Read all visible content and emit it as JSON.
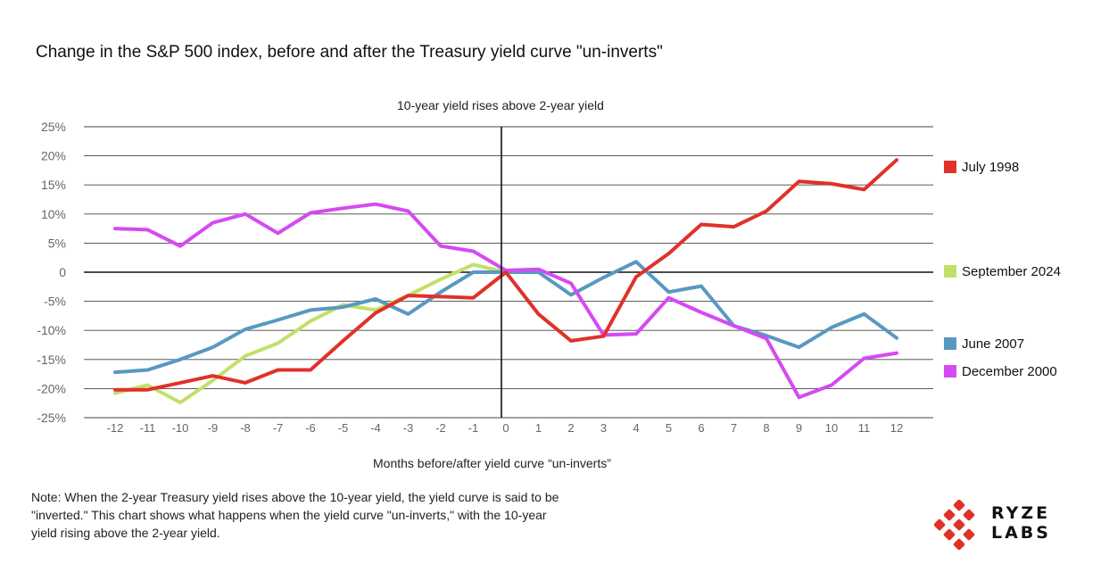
{
  "title": "Change in the S&P 500 index, before and after the Treasury yield curve \"un-inverts\"",
  "note": "Note: When the 2-year Treasury yield rises above the 10-year yield, the yield curve is said to be \"inverted.\" This chart shows what happens when the yield curve \"un-inverts,\" with the 10-year yield rising above the 2-year yield.",
  "logo": {
    "line1": "RYZE",
    "line2": "LABS",
    "color": "#e03127"
  },
  "chart_data": {
    "type": "line",
    "title": "Change in the S&P 500 index, before and after the Treasury yield curve \"un-inverts\"",
    "subtitle": "10-year yield rises above 2-year yield",
    "xlabel": "Months before/after  yield curve “un-inverts”",
    "ylabel": "",
    "x_tick_labels": [
      "-12",
      "-11",
      "-10",
      "-9",
      "-8",
      "-7",
      "-6",
      "-5",
      "-4",
      "-3",
      "-2",
      "-1",
      "0",
      "1",
      "2",
      "3",
      "4",
      "5",
      "6",
      "7",
      "8",
      "9",
      "10",
      "11",
      "12"
    ],
    "y_tick_labels": [
      "25%",
      "20%",
      "15%",
      "10%",
      "5%",
      "0",
      "-5%",
      "-10%",
      "-15%",
      "-20%",
      "-25%"
    ],
    "xlim": [
      -12,
      12
    ],
    "ylim": [
      -25,
      25
    ],
    "grid": true,
    "legend_position": "right",
    "series": [
      {
        "name": "July 1998",
        "color": "#e0312a",
        "points": [
          [
            -12,
            -20.2
          ],
          [
            -11,
            -20.2
          ],
          [
            -10,
            -19
          ],
          [
            -9,
            -17.8
          ],
          [
            -8,
            -19
          ],
          [
            -7,
            -16.8
          ],
          [
            -6,
            -16.8
          ],
          [
            -5,
            -11.8
          ],
          [
            -4,
            -7
          ],
          [
            -3,
            -4
          ],
          [
            -2,
            -4.2
          ],
          [
            -1,
            -4.4
          ],
          [
            0,
            0
          ],
          [
            1,
            -7.2
          ],
          [
            2,
            -11.8
          ],
          [
            3,
            -11
          ],
          [
            4,
            -0.8
          ],
          [
            5,
            3.2
          ],
          [
            6,
            8.2
          ],
          [
            7,
            7.8
          ],
          [
            8,
            10.5
          ],
          [
            9,
            15.6
          ],
          [
            10,
            15.2
          ],
          [
            11,
            14.2
          ],
          [
            12,
            19.3
          ]
        ]
      },
      {
        "name": "September 2024",
        "color": "#c2e069",
        "points": [
          [
            -12,
            -20.8
          ],
          [
            -11,
            -19.4
          ],
          [
            -10,
            -22.4
          ],
          [
            -9,
            -18.6
          ],
          [
            -8,
            -14.4
          ],
          [
            -7,
            -12.2
          ],
          [
            -6,
            -8.4
          ],
          [
            -5,
            -5.6
          ],
          [
            -4,
            -6.5
          ],
          [
            -3,
            -4
          ],
          [
            -2,
            -1.2
          ],
          [
            -1,
            1.3
          ],
          [
            0,
            0
          ]
        ]
      },
      {
        "name": "June 2007",
        "color": "#5799c1",
        "points": [
          [
            -12,
            -17.2
          ],
          [
            -11,
            -16.8
          ],
          [
            -10,
            -15
          ],
          [
            -9,
            -12.9
          ],
          [
            -8,
            -9.8
          ],
          [
            -7,
            -8.2
          ],
          [
            -6,
            -6.5
          ],
          [
            -5,
            -6
          ],
          [
            -4,
            -4.6
          ],
          [
            -3,
            -7.2
          ],
          [
            -2,
            -3.4
          ],
          [
            -1,
            0
          ],
          [
            0,
            0
          ],
          [
            1,
            0
          ],
          [
            2,
            -3.9
          ],
          [
            3,
            -0.9
          ],
          [
            4,
            1.8
          ],
          [
            5,
            -3.4
          ],
          [
            6,
            -2.4
          ],
          [
            7,
            -9.2
          ],
          [
            8,
            -10.9
          ],
          [
            9,
            -12.9
          ],
          [
            10,
            -9.5
          ],
          [
            11,
            -7.2
          ],
          [
            12,
            -11.3
          ]
        ]
      },
      {
        "name": "December 2000",
        "color": "#d54af2",
        "points": [
          [
            -12,
            7.5
          ],
          [
            -11,
            7.3
          ],
          [
            -10,
            4.5
          ],
          [
            -9,
            8.5
          ],
          [
            -8,
            10
          ],
          [
            -7,
            6.7
          ],
          [
            -6,
            10.2
          ],
          [
            -5,
            11
          ],
          [
            -4,
            11.7
          ],
          [
            -3,
            10.5
          ],
          [
            -2,
            4.5
          ],
          [
            -1,
            3.6
          ],
          [
            0,
            0.3
          ],
          [
            1,
            0.5
          ],
          [
            2,
            -1.9
          ],
          [
            3,
            -10.8
          ],
          [
            4,
            -10.6
          ],
          [
            5,
            -4.4
          ],
          [
            6,
            -6.9
          ],
          [
            7,
            -9.2
          ],
          [
            8,
            -11.4
          ],
          [
            9,
            -21.5
          ],
          [
            10,
            -19.4
          ],
          [
            11,
            -14.8
          ],
          [
            12,
            -13.9
          ]
        ]
      }
    ]
  }
}
